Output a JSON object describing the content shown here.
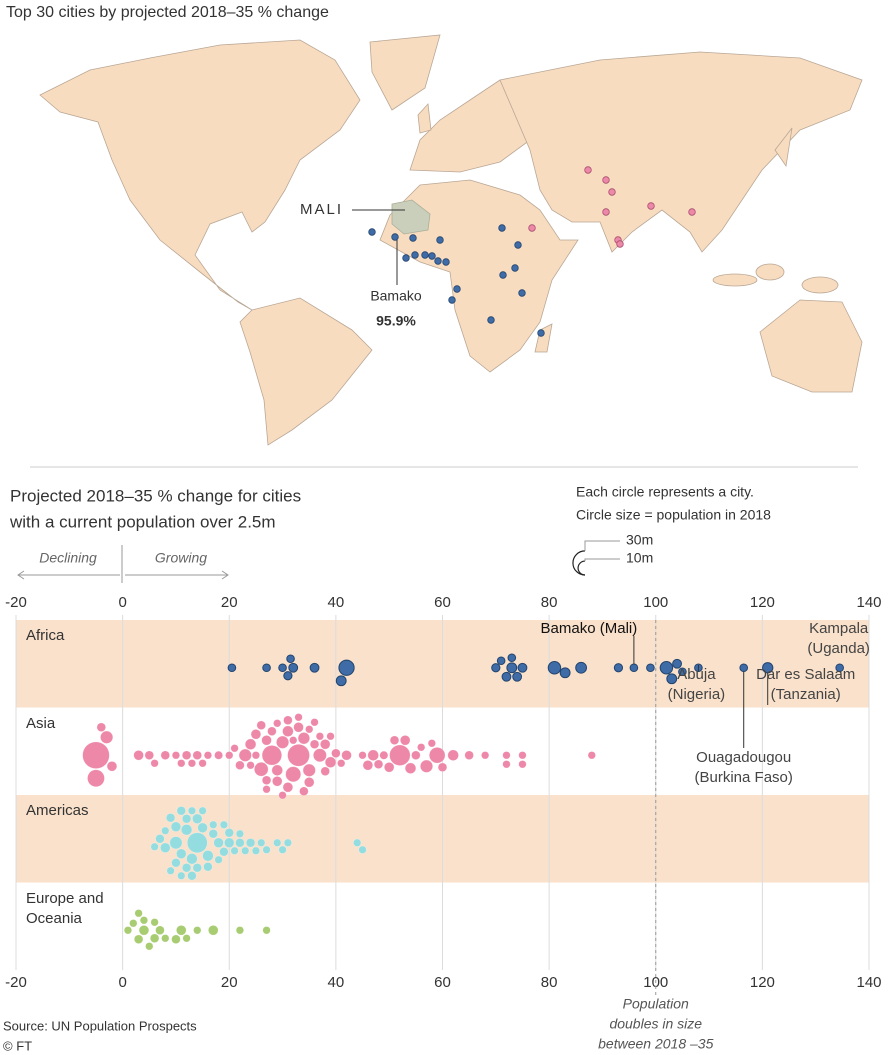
{
  "title": "Top 30 cities by projected 2018–35 % change",
  "map": {
    "country_label": "MALI",
    "city_name": "Bamako",
    "city_change": "95.9%"
  },
  "chart_data": {
    "type": "beeswarm",
    "title_lines": [
      "Projected 2018–35 % change for cities",
      "with a current population over 2.5m"
    ],
    "xlim": [
      -20,
      140
    ],
    "xticks": [
      -20,
      0,
      20,
      40,
      60,
      80,
      100,
      120,
      140
    ],
    "grid": true,
    "direction_labels": {
      "negative": "Declining",
      "positive": "Growing"
    },
    "size_legend": {
      "title_lines": [
        "Each circle represents a city.",
        "Circle size = population in 2018"
      ],
      "sizes": [
        {
          "value": 30,
          "label": "30m"
        },
        {
          "value": 10,
          "label": "10m"
        }
      ]
    },
    "reference_line": {
      "value": 100,
      "label_lines": [
        "Population",
        "doubles in size",
        "between 2018 –35"
      ]
    },
    "series": [
      {
        "name": "Africa",
        "color": "#3f6ca6",
        "values": [
          20.5,
          27,
          30,
          31,
          32,
          31.5,
          36,
          41,
          42,
          70,
          71,
          72,
          73,
          74,
          75,
          73,
          81,
          83,
          86,
          93,
          95.9,
          99,
          102,
          103,
          104,
          105,
          108,
          116.5,
          121,
          134.5
        ],
        "sizes": [
          3,
          3,
          3,
          3.5,
          4,
          3,
          4,
          5,
          12,
          3.5,
          3,
          4,
          3,
          4,
          4,
          5,
          8,
          5,
          6,
          3.5,
          3,
          3,
          8,
          5,
          4,
          3,
          3,
          3,
          5.5,
          3
        ],
        "point_labels": [
          null,
          null,
          null,
          null,
          null,
          null,
          null,
          null,
          null,
          null,
          null,
          null,
          null,
          null,
          null,
          null,
          null,
          null,
          null,
          null,
          [
            "Bamako (Mali)"
          ],
          null,
          null,
          null,
          null,
          null,
          [
            "Abuja",
            "(Nigeria)"
          ],
          [
            "Ouagadougou",
            "(Burkina Faso)"
          ],
          [
            "Dar es Salaam",
            "(Tanzania)"
          ],
          [
            "Kampala",
            "(Uganda)"
          ]
        ]
      },
      {
        "name": "Asia",
        "color": "#ee88a9",
        "values": [
          -5,
          -5,
          -3,
          -2,
          -4,
          3,
          5,
          6,
          8,
          10,
          12,
          14,
          16,
          18,
          20,
          22,
          23,
          24,
          25,
          26,
          27,
          28,
          29,
          30,
          31,
          32,
          33,
          34,
          35,
          36,
          37,
          38,
          39,
          40,
          41,
          42,
          46,
          47,
          48,
          49,
          50,
          52,
          53,
          54,
          55,
          57,
          59,
          62,
          65,
          68,
          72,
          75,
          88,
          24,
          25,
          26,
          27,
          28,
          29,
          30,
          31,
          32,
          33,
          34,
          35,
          36,
          37,
          38,
          39,
          27,
          29,
          31,
          33,
          35,
          21,
          15,
          13,
          11,
          45,
          51,
          56,
          58,
          60,
          72,
          75
        ],
        "sizes": [
          37,
          15,
          8,
          5,
          4,
          5,
          4,
          3,
          4,
          3,
          4,
          4,
          3,
          3.5,
          3,
          4,
          8,
          6,
          5,
          10,
          4,
          20,
          6,
          8,
          5,
          12,
          25,
          7,
          8,
          4,
          9,
          5,
          6,
          4,
          3,
          5,
          5,
          6,
          4,
          3.5,
          5,
          22,
          5,
          6,
          4,
          8,
          13,
          6,
          4,
          3,
          3,
          3,
          3,
          3,
          3,
          4,
          3,
          4,
          3,
          3,
          4,
          3,
          3,
          4,
          3,
          3,
          3,
          4,
          3,
          5,
          5,
          6,
          5,
          5,
          3,
          3,
          3,
          3,
          3,
          4,
          3,
          3,
          4,
          3,
          3
        ]
      },
      {
        "name": "Americas",
        "color": "#93dde0",
        "values": [
          10,
          11,
          12,
          13,
          14,
          14,
          15,
          16,
          17,
          18,
          19,
          20,
          21,
          22,
          23,
          24,
          25,
          26,
          27,
          6,
          7,
          8,
          9,
          10,
          11,
          12,
          13,
          15,
          16,
          17,
          18,
          12,
          10,
          14,
          11,
          9,
          29,
          30,
          31,
          44,
          45,
          20,
          8,
          19,
          22,
          13
        ],
        "sizes": [
          8,
          5,
          4,
          6,
          21,
          4,
          5,
          4,
          3,
          3,
          4,
          4,
          3,
          3,
          3,
          4,
          3,
          3,
          3,
          3,
          4,
          5,
          3,
          4,
          3,
          6,
          3,
          3,
          6,
          4,
          5,
          4,
          5,
          5,
          4,
          4,
          3,
          3,
          3,
          3,
          3,
          5,
          3,
          3,
          4,
          4
        ]
      },
      {
        "name": "Europe and Oceania",
        "color": "#a8cc72",
        "values": [
          1,
          2,
          3,
          4,
          5,
          6,
          7,
          8,
          10,
          11,
          12,
          14,
          17,
          22,
          27,
          3,
          6,
          4
        ],
        "sizes": [
          3,
          3,
          4,
          3,
          3,
          3,
          4,
          3,
          4,
          5,
          3,
          3,
          5,
          3,
          3,
          3,
          4,
          5
        ]
      }
    ],
    "source": "Source: UN Population Prospects",
    "credit": "© FT"
  }
}
